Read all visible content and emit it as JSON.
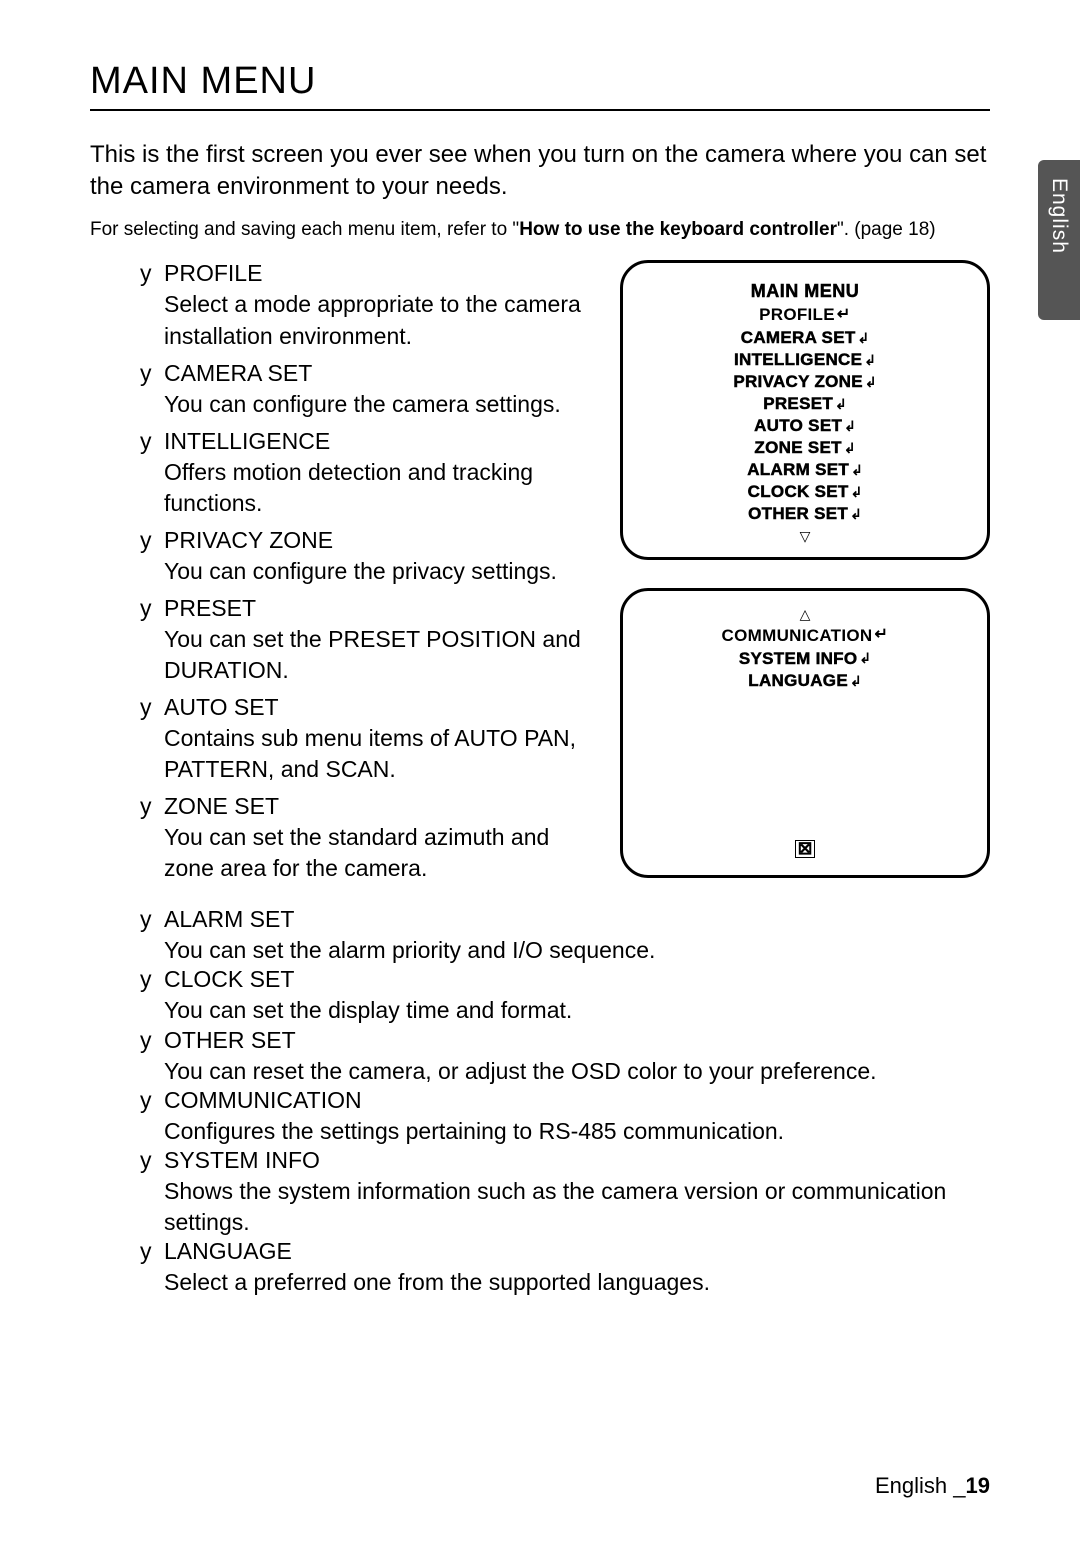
{
  "title": "MAIN MENU",
  "intro": "This is the first screen you ever see when you turn on the camera where you can set the camera environment to your needs.",
  "subnote_prefix": "For selecting and saving each menu item, refer to \"",
  "subnote_bold": "How to use the keyboard controller",
  "subnote_suffix": "\". (page 18)",
  "bullet_char": "y",
  "items": [
    {
      "name": "PROFILE",
      "desc": "Select a mode appropriate to the camera installation environment."
    },
    {
      "name": "CAMERA SET",
      "desc": "You can configure the camera settings."
    },
    {
      "name": "INTELLIGENCE",
      "desc": "Offers motion detection and tracking functions."
    },
    {
      "name": "PRIVACY ZONE",
      "desc": "You can configure the privacy settings."
    },
    {
      "name": "PRESET",
      "desc": "You can set the PRESET POSITION and DURATION."
    },
    {
      "name": "AUTO SET",
      "desc": "Contains sub menu items of AUTO PAN, PATTERN, and SCAN."
    },
    {
      "name": "ZONE SET",
      "desc": "You can set the standard azimuth and zone area for the camera."
    },
    {
      "name": "ALARM SET",
      "desc": "You can set the alarm priority and I/O sequence."
    },
    {
      "name": "CLOCK SET",
      "desc": "You can set the display time and format."
    },
    {
      "name": "OTHER SET",
      "desc": "You can reset the camera, or adjust the OSD color to your preference."
    },
    {
      "name": "COMMUNICATION",
      "desc": "Configures the settings pertaining to RS-485 communication."
    },
    {
      "name": "SYSTEM INFO",
      "desc": "Shows the system information such as the camera version or communication settings."
    },
    {
      "name": "LANGUAGE",
      "desc": "Select a preferred one from the supported languages."
    }
  ],
  "osd1": {
    "title": "MAIN MENU",
    "lines": [
      {
        "label": "PROFILE",
        "icon": "enter"
      },
      {
        "label": "CAMERA SET",
        "icon": "sub"
      },
      {
        "label": "INTELLIGENCE",
        "icon": "sub"
      },
      {
        "label": "PRIVACY ZONE",
        "icon": "sub"
      },
      {
        "label": "PRESET",
        "icon": "sub"
      },
      {
        "label": "AUTO SET",
        "icon": "sub"
      },
      {
        "label": "ZONE SET",
        "icon": "sub"
      },
      {
        "label": "ALARM SET",
        "icon": "sub"
      },
      {
        "label": "CLOCK SET",
        "icon": "sub"
      },
      {
        "label": "OTHER SET",
        "icon": "sub"
      }
    ],
    "nav_down": "▽"
  },
  "osd2": {
    "nav_up": "△",
    "lines": [
      {
        "label": "COMMUNICATION",
        "icon": "enter"
      },
      {
        "label": "SYSTEM INFO",
        "icon": "sub"
      },
      {
        "label": "LANGUAGE",
        "icon": "sub"
      }
    ],
    "exit": "⊠"
  },
  "side_tab": "English",
  "footer_lang": "English _",
  "footer_page": "19"
}
